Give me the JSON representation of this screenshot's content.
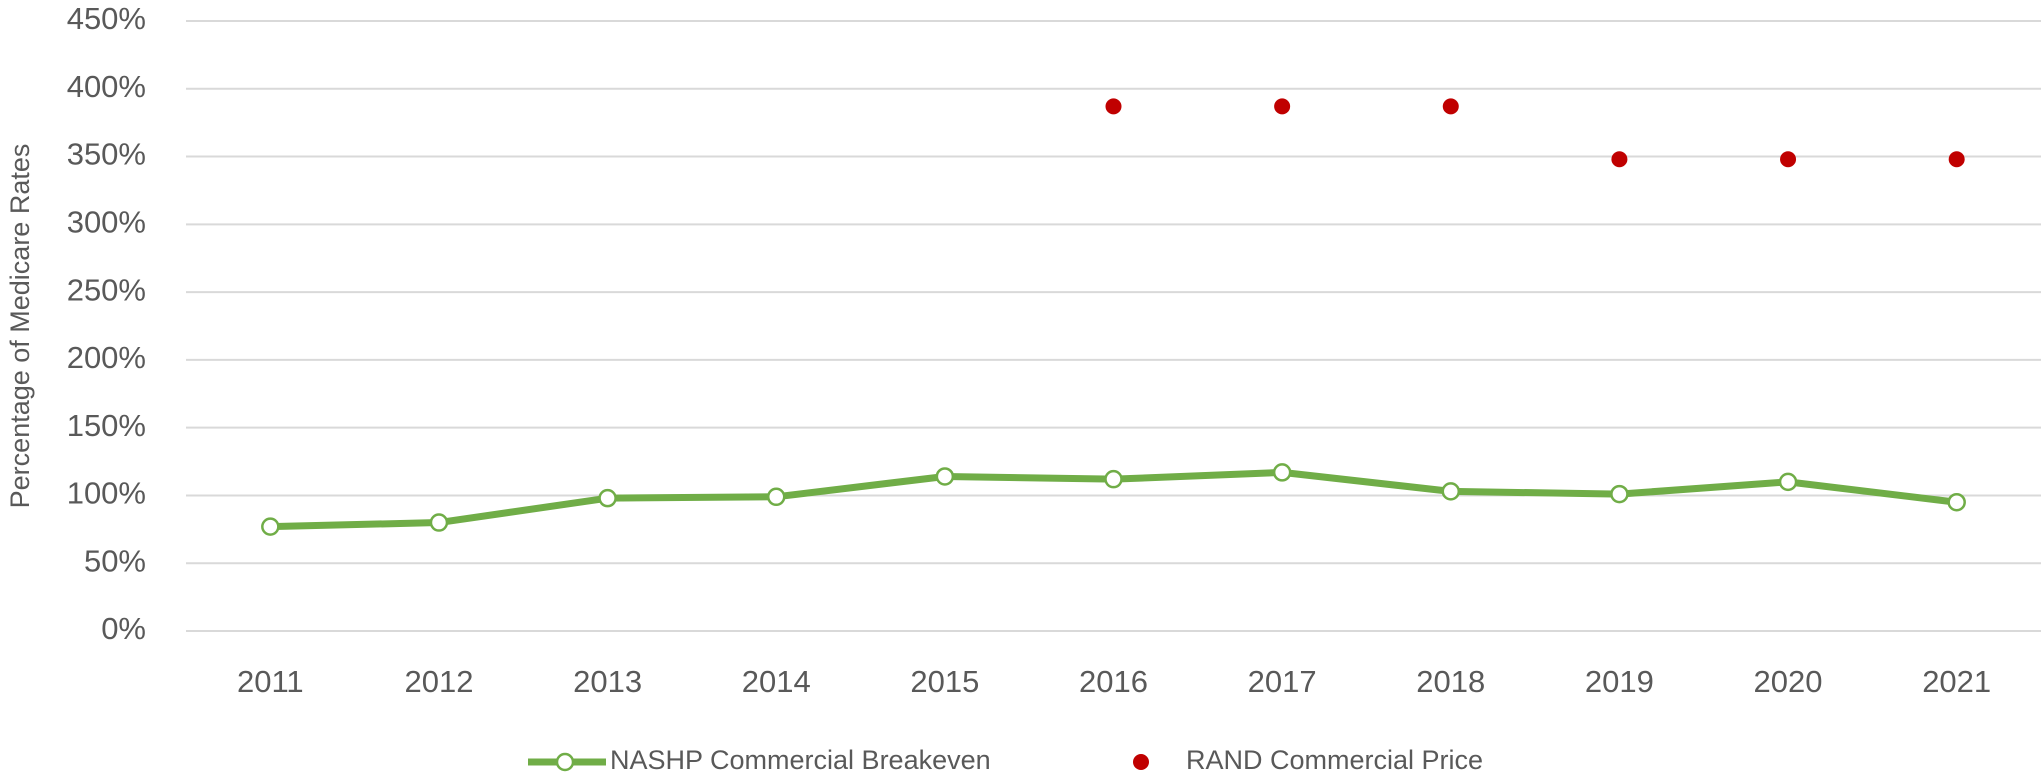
{
  "chart_data": {
    "type": "line",
    "y_axis_label": "Percentage of Medicare Rates",
    "categories": [
      "2011",
      "2012",
      "2013",
      "2014",
      "2015",
      "2016",
      "2017",
      "2018",
      "2019",
      "2020",
      "2021"
    ],
    "series": [
      {
        "name": "NASHP Commercial Breakeven",
        "color": "#70ad47",
        "style": "line",
        "values": [
          77,
          80,
          98,
          99,
          114,
          112,
          117,
          103,
          101,
          110,
          95
        ]
      },
      {
        "name": "RAND Commercial Price",
        "color": "#c00000",
        "style": "markers",
        "values": [
          null,
          null,
          null,
          null,
          null,
          387,
          387,
          387,
          348,
          348,
          348
        ]
      }
    ],
    "ylim": [
      0,
      450
    ],
    "yticks": [
      {
        "value": 0,
        "label": "0%"
      },
      {
        "value": 50,
        "label": "50%"
      },
      {
        "value": 100,
        "label": "100%"
      },
      {
        "value": 150,
        "label": "150%"
      },
      {
        "value": 200,
        "label": "200%"
      },
      {
        "value": 250,
        "label": "250%"
      },
      {
        "value": 300,
        "label": "300%"
      },
      {
        "value": 350,
        "label": "350%"
      },
      {
        "value": 400,
        "label": "400%"
      },
      {
        "value": 450,
        "label": "450%"
      }
    ],
    "grid": true,
    "legend": "bottom"
  }
}
